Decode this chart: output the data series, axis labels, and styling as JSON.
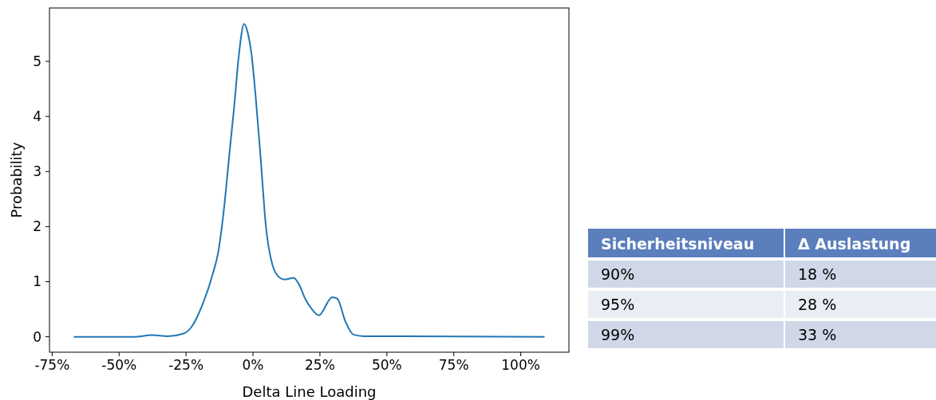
{
  "chart_data": [
    {
      "type": "line",
      "xlabel": "Delta Line Loading",
      "ylabel": "Probability",
      "xlim": [
        -76,
        118
      ],
      "ylim": [
        -0.28,
        5.97
      ],
      "xticks": [
        {
          "value": -75,
          "label": "-75%"
        },
        {
          "value": -50,
          "label": "-50%"
        },
        {
          "value": -25,
          "label": "-25%"
        },
        {
          "value": 0,
          "label": "0%"
        },
        {
          "value": 25,
          "label": "25%"
        },
        {
          "value": 50,
          "label": "50%"
        },
        {
          "value": 75,
          "label": "75%"
        },
        {
          "value": 100,
          "label": "100%"
        }
      ],
      "yticks": [
        0,
        1,
        2,
        3,
        4,
        5
      ],
      "grid": false,
      "marker": "none",
      "line_style": "solid",
      "series": [
        {
          "color": "#1f77b4",
          "x": [
            -66.9,
            -43.6,
            -37.7,
            -31.8,
            -25.8,
            -22.8,
            -18.9,
            -14.9,
            -13,
            -11,
            -8.5,
            -7,
            -5.3,
            -3.3,
            -2,
            -0.6,
            0.9,
            2.9,
            4.8,
            7.3,
            9.8,
            11.8,
            15.2,
            17.2,
            19.7,
            21.7,
            24.6,
            29.6,
            31.5,
            34.5,
            37.5,
            41.4,
            108.9
          ],
          "values": [
            0,
            0,
            0.03,
            0.01,
            0.06,
            0.19,
            0.58,
            1.16,
            1.53,
            2.25,
            3.47,
            4.19,
            5.1,
            5.68,
            5.53,
            5.15,
            4.42,
            3.22,
            2.02,
            1.3,
            1.08,
            1.04,
            1.07,
            0.95,
            0.67,
            0.52,
            0.39,
            0.72,
            0.69,
            0.28,
            0.04,
            0.01,
            0
          ]
        }
      ]
    },
    {
      "type": "other",
      "xlabel": "Sicherheitsniveau",
      "ylabel": "Δ Auslastung",
      "categories": [
        "90%",
        "95%",
        "99%"
      ],
      "value_labels": [
        "18 %",
        "28 %",
        "33 %"
      ]
    }
  ]
}
